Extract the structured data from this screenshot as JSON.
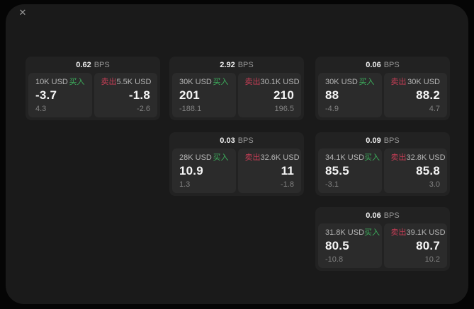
{
  "page": {
    "close_glyph": "✕"
  },
  "labels": {
    "bps": "BPS",
    "buy": "买入",
    "sell": "卖出"
  },
  "colors": {
    "buy_green": "#3cae5c",
    "sell_red": "#c73e56",
    "panel_bg": "#1a1a1a",
    "card_bg": "#222222",
    "subpanel_bg": "#2b2b2b"
  },
  "cards": [
    {
      "bps": "0.62",
      "buy": {
        "size": "10K USD",
        "value": "-3.7",
        "delta": "4.3"
      },
      "sell": {
        "size": "5.5K USD",
        "value": "-1.8",
        "delta": "-2.6"
      }
    },
    {
      "bps": "2.92",
      "buy": {
        "size": "30K USD",
        "value": "201",
        "delta": "-188.1"
      },
      "sell": {
        "size": "30.1K USD",
        "value": "210",
        "delta": "196.5"
      }
    },
    {
      "bps": "0.06",
      "buy": {
        "size": "30K USD",
        "value": "88",
        "delta": "-4.9"
      },
      "sell": {
        "size": "30K USD",
        "value": "88.2",
        "delta": "4.7"
      }
    },
    {
      "bps": "0.03",
      "buy": {
        "size": "28K USD",
        "value": "10.9",
        "delta": "1.3"
      },
      "sell": {
        "size": "32.6K USD",
        "value": "11",
        "delta": "-1.8"
      }
    },
    {
      "bps": "0.09",
      "buy": {
        "size": "34.1K USD",
        "value": "85.5",
        "delta": "-3.1"
      },
      "sell": {
        "size": "32.8K USD",
        "value": "85.8",
        "delta": "3.0"
      }
    },
    {
      "bps": "0.06",
      "buy": {
        "size": "31.8K USD",
        "value": "80.5",
        "delta": "-10.8"
      },
      "sell": {
        "size": "39.1K USD",
        "value": "80.7",
        "delta": "10.2"
      }
    }
  ]
}
